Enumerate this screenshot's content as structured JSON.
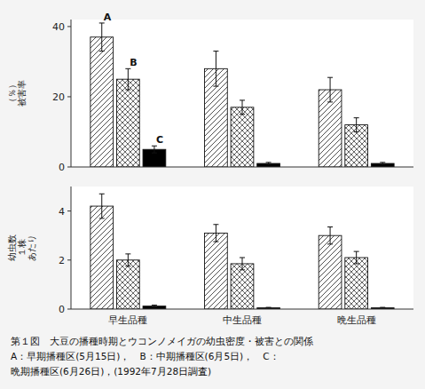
{
  "chart_data": [
    {
      "type": "bar",
      "y_label": "（％）\n被害率",
      "categories": [
        "早生品種",
        "中生品種",
        "晩生品種"
      ],
      "series": [
        {
          "name": "A",
          "color": "white",
          "values": [
            37,
            28,
            22
          ],
          "errors": [
            4,
            5,
            3.5
          ]
        },
        {
          "name": "B",
          "color": "white",
          "values": [
            25,
            17,
            12
          ],
          "errors": [
            3,
            2,
            2
          ]
        },
        {
          "name": "C",
          "color": "black",
          "values": [
            5,
            1,
            1
          ],
          "errors": [
            1.0,
            0.3,
            0.3
          ]
        }
      ],
      "ylim": [
        0,
        42
      ],
      "yticks": [
        0,
        20,
        40
      ],
      "grid": false,
      "tick_labels": "y"
    },
    {
      "type": "bar",
      "y_label": "幼虫数\n１株\nあたり",
      "categories": [
        "早生品種",
        "中生品種",
        "晩生品種"
      ],
      "series": [
        {
          "color": "white",
          "values": [
            4.2,
            3.1,
            3.0
          ],
          "errors": [
            0.5,
            0.35,
            0.35
          ]
        },
        {
          "color": "white",
          "values": [
            2.0,
            1.85,
            2.1
          ],
          "errors": [
            0.25,
            0.25,
            0.25
          ]
        },
        {
          "color": "black",
          "values": [
            0.12,
            0.05,
            0.05
          ],
          "errors": [
            0.04,
            0.02,
            0.02
          ]
        }
      ],
      "ylim": [
        0,
        5
      ],
      "yticks": [
        0,
        2,
        4
      ],
      "grid": false,
      "annotations": [
        "第１図　大豆の播種時期とウコンノメイガの幼虫密度・被害との関係",
        "A：早期播種区(5月15日)，　B：中期播種区(6月5日)，　C：",
        "晩期播種区(6月26日)，(1992年7月28日調査)"
      ]
    }
  ]
}
